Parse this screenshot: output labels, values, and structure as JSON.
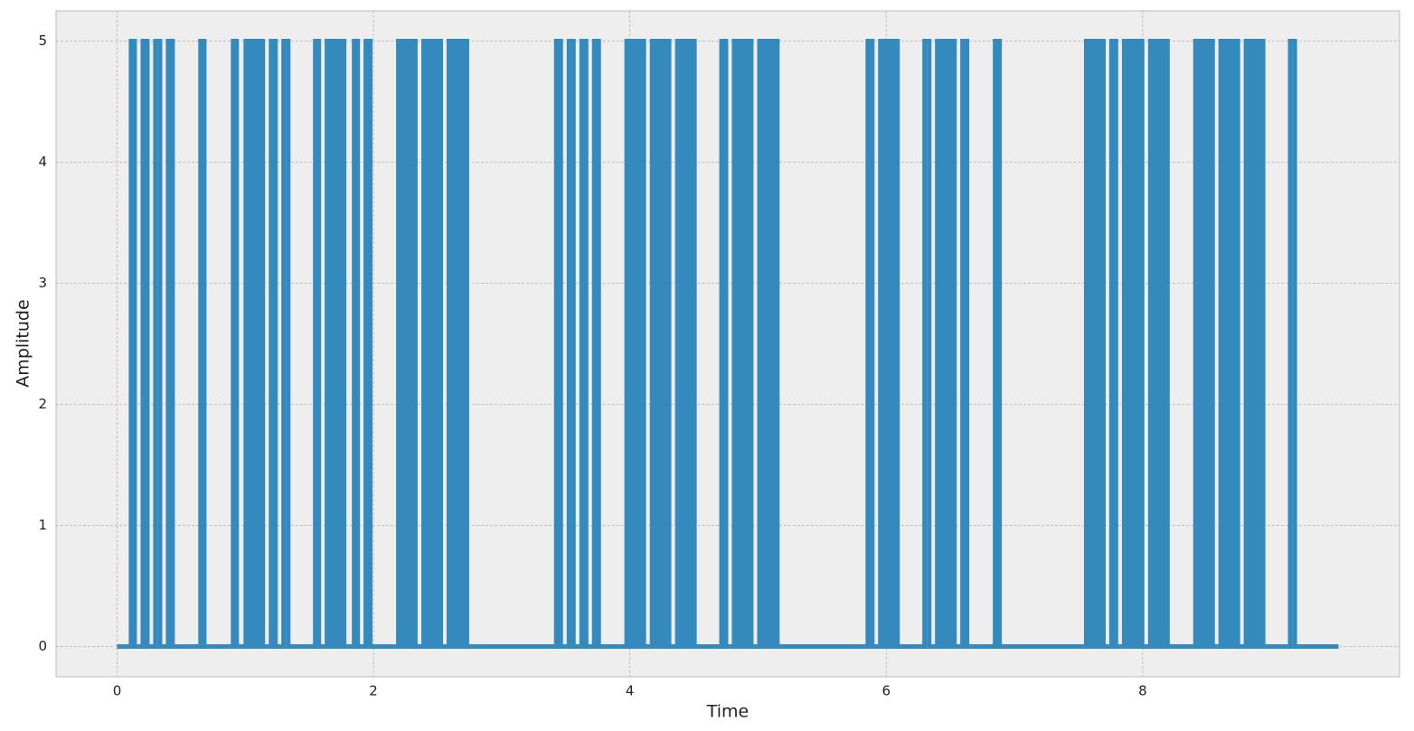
{
  "chart_data": {
    "type": "line",
    "x_label": "Time",
    "y_label": "Amplitude",
    "xlim": [
      -0.476,
      10.004
    ],
    "ylim": [
      -0.25,
      5.25
    ],
    "xticks": [
      0,
      2,
      4,
      6,
      8
    ],
    "yticks": [
      0,
      1,
      2,
      3,
      4,
      5
    ],
    "grid": true,
    "series": [
      {
        "color": "#348abd",
        "x": [
          0,
          0.109,
          0.109,
          0.137,
          0.137,
          0.201,
          0.201,
          0.236,
          0.236,
          0.299,
          0.299,
          0.335,
          0.335,
          0.398,
          0.398,
          0.433,
          0.433,
          0.651,
          0.651,
          0.68,
          0.68,
          0.905,
          0.905,
          0.933,
          0.933,
          1.004,
          1.004,
          1.03,
          1.03,
          1.057,
          1.057,
          1.084,
          1.084,
          1.111,
          1.111,
          1.137,
          1.137,
          1.201,
          1.201,
          1.236,
          1.236,
          1.299,
          1.299,
          1.335,
          1.335,
          1.546,
          1.546,
          1.574,
          1.574,
          1.637,
          1.637,
          1.664,
          1.664,
          1.691,
          1.691,
          1.718,
          1.718,
          1.744,
          1.744,
          1.771,
          1.771,
          1.849,
          1.849,
          1.877,
          1.877,
          1.94,
          1.94,
          1.975,
          1.975,
          2.194,
          2.194,
          2.22,
          2.22,
          2.247,
          2.247,
          2.274,
          2.274,
          2.301,
          2.301,
          2.327,
          2.327,
          2.391,
          2.391,
          2.418,
          2.418,
          2.444,
          2.444,
          2.471,
          2.471,
          2.498,
          2.498,
          2.525,
          2.525,
          2.588,
          2.588,
          2.616,
          2.616,
          2.644,
          2.644,
          2.673,
          2.673,
          2.701,
          2.701,
          2.729,
          2.729,
          3.426,
          3.426,
          3.461,
          3.461,
          3.525,
          3.525,
          3.56,
          3.56,
          3.624,
          3.624,
          3.659,
          3.659,
          3.722,
          3.722,
          3.757,
          3.757,
          3.975,
          3.975,
          4.002,
          4.002,
          4.029,
          4.029,
          4.055,
          4.055,
          4.082,
          4.082,
          4.109,
          4.109,
          4.173,
          4.173,
          4.199,
          4.199,
          4.226,
          4.226,
          4.253,
          4.253,
          4.28,
          4.28,
          4.306,
          4.306,
          4.37,
          4.37,
          4.397,
          4.397,
          4.423,
          4.423,
          4.45,
          4.45,
          4.477,
          4.477,
          4.504,
          4.504,
          4.715,
          4.715,
          4.75,
          4.75,
          4.813,
          4.813,
          4.84,
          4.84,
          4.867,
          4.867,
          4.894,
          4.894,
          4.92,
          4.92,
          4.947,
          4.947,
          5.011,
          5.011,
          5.039,
          5.039,
          5.067,
          5.067,
          5.095,
          5.095,
          5.123,
          5.123,
          5.151,
          5.151,
          5.856,
          5.856,
          5.891,
          5.891,
          5.954,
          5.954,
          5.981,
          5.981,
          6.008,
          6.008,
          6.034,
          6.034,
          6.061,
          6.061,
          6.088,
          6.088,
          6.299,
          6.299,
          6.335,
          6.335,
          6.398,
          6.398,
          6.425,
          6.425,
          6.452,
          6.452,
          6.479,
          6.479,
          6.505,
          6.505,
          6.532,
          6.532,
          6.595,
          6.595,
          6.63,
          6.63,
          6.849,
          6.849,
          6.884,
          6.884,
          7.56,
          7.56,
          7.587,
          7.587,
          7.614,
          7.614,
          7.641,
          7.641,
          7.667,
          7.667,
          7.694,
          7.694,
          7.757,
          7.757,
          7.792,
          7.792,
          7.856,
          7.856,
          7.884,
          7.884,
          7.912,
          7.912,
          7.94,
          7.94,
          7.968,
          7.968,
          7.996,
          7.996,
          8.06,
          8.06,
          8.087,
          8.087,
          8.113,
          8.113,
          8.14,
          8.14,
          8.167,
          8.167,
          8.194,
          8.194,
          8.412,
          8.412,
          8.439,
          8.439,
          8.466,
          8.466,
          8.492,
          8.492,
          8.519,
          8.519,
          8.546,
          8.546,
          8.609,
          8.609,
          8.636,
          8.636,
          8.663,
          8.663,
          8.69,
          8.69,
          8.716,
          8.716,
          8.743,
          8.743,
          8.806,
          8.806,
          8.833,
          8.833,
          8.86,
          8.86,
          8.887,
          8.887,
          8.913,
          8.913,
          8.94,
          8.94,
          9.151,
          9.151,
          9.187,
          9.187,
          9.528
        ],
        "values": [
          0,
          0,
          5,
          5,
          0,
          0,
          5,
          5,
          0,
          0,
          5,
          5,
          0,
          0,
          5,
          5,
          0,
          0,
          5,
          5,
          0,
          0,
          5,
          5,
          0,
          0,
          5,
          5,
          0,
          0,
          5,
          5,
          0,
          0,
          5,
          5,
          0,
          0,
          5,
          5,
          0,
          0,
          5,
          5,
          0,
          0,
          5,
          5,
          0,
          0,
          5,
          5,
          0,
          0,
          5,
          5,
          0,
          0,
          5,
          5,
          0,
          0,
          5,
          5,
          0,
          0,
          5,
          5,
          0,
          0,
          5,
          5,
          0,
          0,
          5,
          5,
          0,
          0,
          5,
          5,
          0,
          0,
          5,
          5,
          0,
          0,
          5,
          5,
          0,
          0,
          5,
          5,
          0,
          0,
          5,
          5,
          0,
          0,
          5,
          5,
          0,
          0,
          5,
          5,
          0,
          0,
          5,
          5,
          0,
          0,
          5,
          5,
          0,
          0,
          5,
          5,
          0,
          0,
          5,
          5,
          0,
          0,
          5,
          5,
          0,
          0,
          5,
          5,
          0,
          0,
          5,
          5,
          0,
          0,
          5,
          5,
          0,
          0,
          5,
          5,
          0,
          0,
          5,
          5,
          0,
          0,
          5,
          5,
          0,
          0,
          5,
          5,
          0,
          0,
          5,
          5,
          0,
          0,
          5,
          5,
          0,
          0,
          5,
          5,
          0,
          0,
          5,
          5,
          0,
          0,
          5,
          5,
          0,
          0,
          5,
          5,
          0,
          0,
          5,
          5,
          0,
          0,
          5,
          5,
          0,
          0,
          5,
          5,
          0,
          0,
          5,
          5,
          0,
          0,
          5,
          5,
          0,
          0,
          5,
          5,
          0,
          0,
          5,
          5,
          0,
          0,
          5,
          5,
          0,
          0,
          5,
          5,
          0,
          0,
          5,
          5,
          0,
          0,
          5,
          5,
          0,
          0,
          5,
          5,
          0,
          0,
          5,
          5,
          0,
          0,
          5,
          5,
          0,
          0,
          5,
          5,
          0,
          0,
          5,
          5,
          0,
          0,
          5,
          5,
          0,
          0,
          5,
          5,
          0,
          0,
          5,
          5,
          0,
          0,
          5,
          5,
          0,
          0,
          5,
          5,
          0,
          0,
          5,
          5,
          0,
          0,
          5,
          5,
          0,
          0,
          5,
          5,
          0,
          0,
          5,
          5,
          0,
          0,
          5,
          5,
          0,
          0,
          5,
          5,
          0,
          0,
          5,
          5,
          0,
          0,
          5,
          5,
          0,
          0,
          5,
          5,
          0,
          0,
          5,
          5,
          0,
          0,
          5,
          5,
          0,
          0
        ]
      }
    ]
  }
}
